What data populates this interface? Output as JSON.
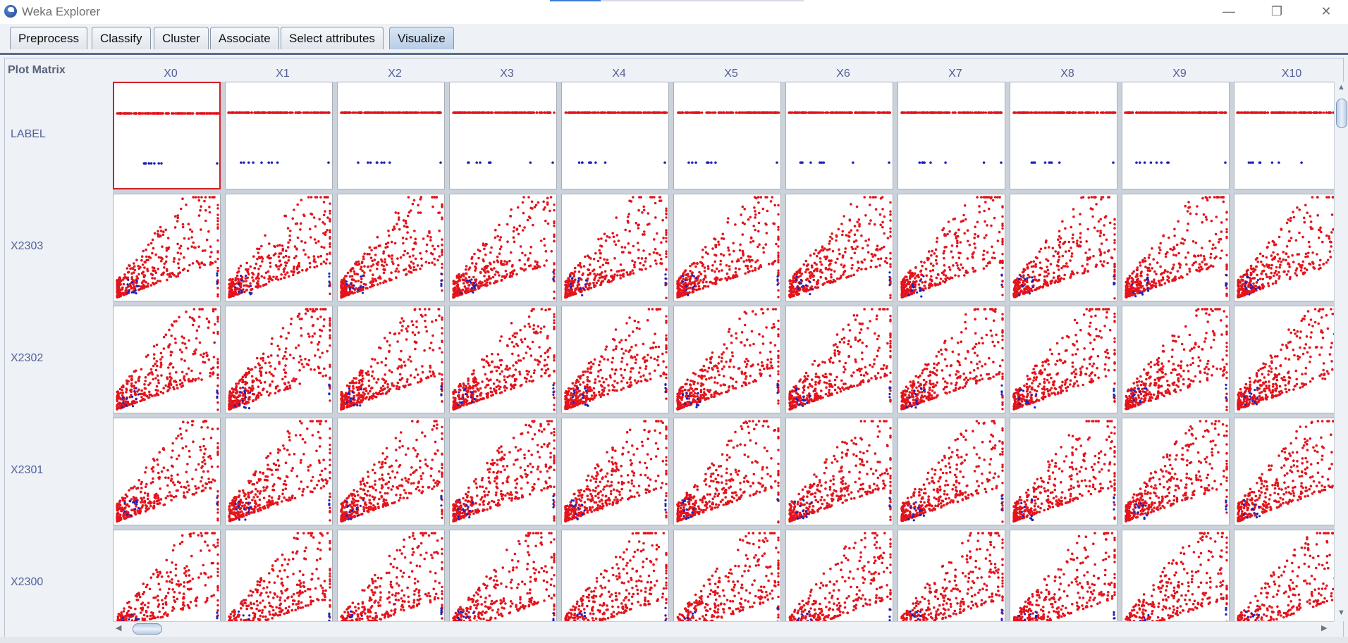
{
  "window": {
    "title": "Weka Explorer",
    "minimize_glyph": "—",
    "restore_glyph": "❐",
    "close_glyph": "✕"
  },
  "tabs": [
    {
      "label": "Preprocess"
    },
    {
      "label": "Classify"
    },
    {
      "label": "Cluster"
    },
    {
      "label": "Associate"
    },
    {
      "label": "Select attributes"
    },
    {
      "label": "Visualize",
      "selected": true
    }
  ],
  "plot_matrix": {
    "title": "Plot Matrix",
    "columns": [
      "X0",
      "X1",
      "X2",
      "X3",
      "X4",
      "X5",
      "X6",
      "X7",
      "X8",
      "X9",
      "X10"
    ],
    "rows": [
      "LABEL",
      "X2303",
      "X2302",
      "X2301",
      "X2300"
    ],
    "selected_cell": {
      "row": "LABEL",
      "column": "X0"
    }
  },
  "colors": {
    "class_a": "#e3141c",
    "class_b": "#1c22b8",
    "selected_border": "#d0202a"
  },
  "icons": {
    "app": "weka-bird-icon",
    "scroll_up": "▲",
    "scroll_down": "▼",
    "scroll_left": "◀",
    "scroll_right": "▶"
  }
}
